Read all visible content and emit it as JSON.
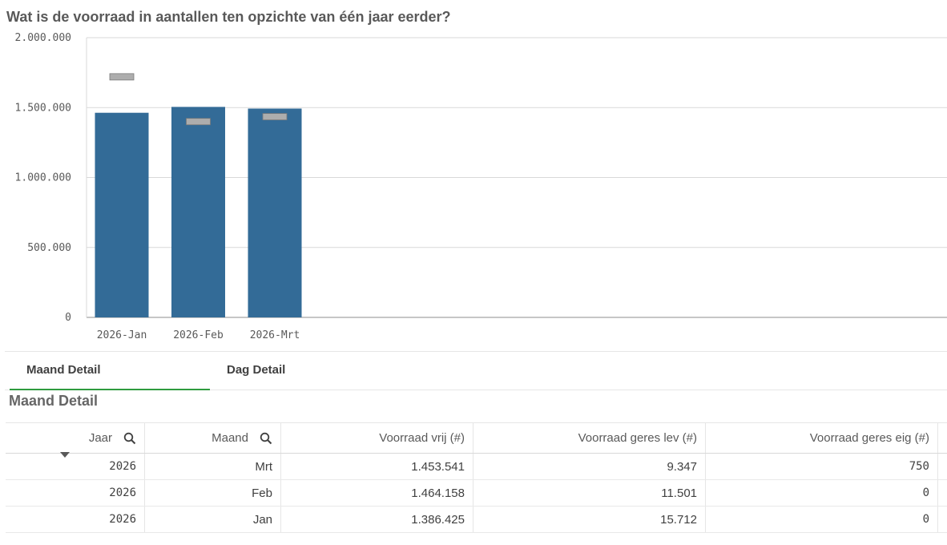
{
  "chart_title": "Wat is de voorraad in aantallen ten opzichte van één jaar eerder?",
  "chart_data": {
    "type": "bar",
    "title": "Wat is de voorraad in aantallen ten opzichte van één jaar eerder?",
    "categories": [
      "2026-Jan",
      "2026-Feb",
      "2026-Mrt"
    ],
    "series": [
      {
        "values": [
          1463000,
          1505000,
          1493000
        ],
        "color": "#336b97"
      },
      {
        "values": [
          1720000,
          1400000,
          1435000
        ],
        "color": "#adadad",
        "marker": "dash"
      }
    ],
    "ylim": [
      0,
      2000000
    ],
    "yticks": [
      0,
      500000,
      1000000,
      1500000,
      2000000
    ],
    "ytick_labels": [
      "0",
      "500.000",
      "1.000.000",
      "1.500.000",
      "2.000.000"
    ],
    "grid": true
  },
  "tabs": [
    {
      "label": "Maand Detail",
      "active": true
    },
    {
      "label": "Dag Detail",
      "active": false
    }
  ],
  "table": {
    "title": "Maand Detail",
    "headers": [
      "Jaar",
      "Maand",
      "Voorraad vrij (#)",
      "Voorraad geres lev (#)",
      "Voorraad geres eig (#)"
    ],
    "rows": [
      [
        "2026",
        "Mrt",
        "1.453.541",
        "9.347",
        "750"
      ],
      [
        "2026",
        "Feb",
        "1.464.158",
        "11.501",
        "0"
      ],
      [
        "2026",
        "Jan",
        "1.386.425",
        "15.712",
        "0"
      ]
    ]
  },
  "icons": {
    "search": "search-icon",
    "sort": "sort-descending-icon"
  }
}
